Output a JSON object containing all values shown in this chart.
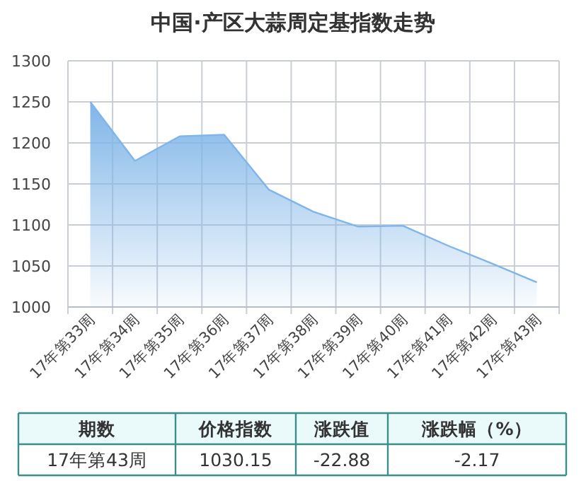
{
  "chart_data": {
    "type": "area",
    "title": "中国·产区大蒜周定基指数走势",
    "categories": [
      "17年第33周",
      "17年第34周",
      "17年第35周",
      "17年第36周",
      "17年第37周",
      "17年第38周",
      "17年第39周",
      "17年第40周",
      "17年第41周",
      "17年第42周",
      "17年第43周"
    ],
    "values": [
      1250,
      1178,
      1208,
      1210,
      1143,
      1116,
      1098,
      1099,
      1075,
      1053,
      1030.15
    ],
    "color": "#7fb5e8",
    "ylim": [
      1000,
      1300
    ],
    "yticks": [
      1000,
      1050,
      1100,
      1150,
      1200,
      1250,
      1300
    ],
    "grid": true,
    "annotations": [
      "期数",
      "价格指数",
      "涨跌值",
      "涨跌幅（%）",
      "17年第43周",
      "1030.15",
      "-22.88",
      "-2.17"
    ]
  }
}
